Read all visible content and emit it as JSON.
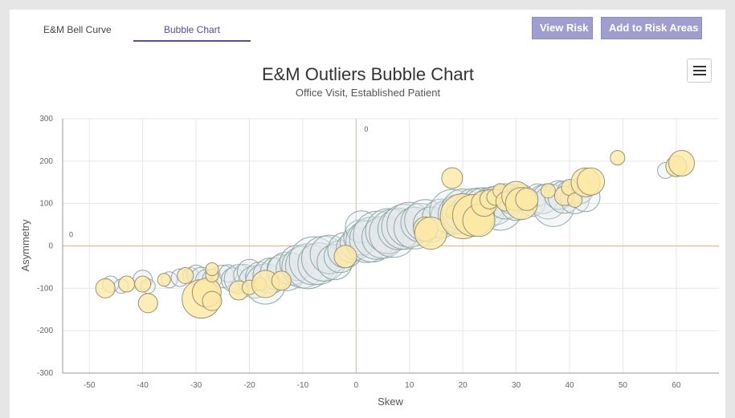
{
  "tabs": [
    {
      "label": "E&M Bell Curve"
    },
    {
      "label": "Bubble Chart"
    }
  ],
  "buttons": {
    "view_risk": "View Risk",
    "add_to_risk_areas": "Add to Risk Areas"
  },
  "menu_icon": "hamburger-menu-icon",
  "colors": {
    "accent": "#5b4a9e",
    "button": "#a09dd0",
    "zero_line": "#f2b49b",
    "bubble_outlier": "#fde9a6",
    "bubble_normal": "#e3e9ea"
  },
  "chart_data": {
    "type": "scatter",
    "title": "E&M Outliers Bubble Chart",
    "subtitle": "Office Visit, Established Patient",
    "xlabel": "Skew",
    "ylabel": "Asymmetry",
    "xlim": [
      -55,
      68
    ],
    "ylim": [
      -300,
      300
    ],
    "x_ticks": [
      -50,
      -40,
      -30,
      -20,
      -10,
      0,
      10,
      20,
      30,
      40,
      50,
      60
    ],
    "y_ticks": [
      -300,
      -200,
      -100,
      0,
      100,
      200,
      300
    ],
    "zero_line_labels": {
      "x_axis": "0",
      "y_axis": "0"
    },
    "grid": true,
    "series": [
      {
        "values": [
          [
            -46,
            -90,
            10
          ],
          [
            -44,
            -95,
            9
          ],
          [
            -40,
            -80,
            12
          ],
          [
            -39,
            -95,
            9
          ],
          [
            -35,
            -80,
            10
          ],
          [
            -33,
            -75,
            11
          ],
          [
            -31,
            -70,
            10
          ],
          [
            -30,
            -68,
            12
          ],
          [
            -29,
            -75,
            13
          ],
          [
            -28,
            -82,
            14
          ],
          [
            -27,
            -78,
            12
          ],
          [
            -25,
            -72,
            14
          ],
          [
            -24,
            -65,
            11
          ],
          [
            -23,
            -80,
            15
          ],
          [
            -22,
            -78,
            18
          ],
          [
            -21,
            -68,
            13
          ],
          [
            -20,
            -60,
            15
          ],
          [
            -19,
            -85,
            20
          ],
          [
            -18,
            -72,
            18
          ],
          [
            -17,
            -90,
            25
          ],
          [
            -16,
            -70,
            22
          ],
          [
            -15,
            -65,
            20
          ],
          [
            -14,
            -55,
            18
          ],
          [
            -13,
            -60,
            24
          ],
          [
            -12,
            -55,
            20
          ],
          [
            -11,
            -40,
            22
          ],
          [
            -10,
            -50,
            26
          ],
          [
            -9,
            -48,
            28
          ],
          [
            -8,
            -35,
            30
          ],
          [
            -7,
            -42,
            26
          ],
          [
            -6,
            -30,
            28
          ],
          [
            -5,
            -20,
            24
          ],
          [
            -4,
            -38,
            22
          ],
          [
            -3,
            -25,
            20
          ],
          [
            -2,
            -10,
            22
          ],
          [
            -1,
            -5,
            18
          ],
          [
            0,
            5,
            20
          ],
          [
            1,
            20,
            22
          ],
          [
            1,
            45,
            20
          ],
          [
            2,
            10,
            26
          ],
          [
            3,
            15,
            28
          ],
          [
            4,
            25,
            30
          ],
          [
            5,
            20,
            26
          ],
          [
            6,
            35,
            28
          ],
          [
            7,
            30,
            30
          ],
          [
            8,
            40,
            26
          ],
          [
            9,
            45,
            28
          ],
          [
            10,
            50,
            28
          ],
          [
            11,
            42,
            26
          ],
          [
            12,
            55,
            24
          ],
          [
            13,
            60,
            26
          ],
          [
            14,
            50,
            22
          ],
          [
            16,
            65,
            24
          ],
          [
            17,
            70,
            20
          ],
          [
            18,
            80,
            28
          ],
          [
            19,
            75,
            24
          ],
          [
            20,
            85,
            26
          ],
          [
            21,
            80,
            22
          ],
          [
            22,
            90,
            24
          ],
          [
            23,
            95,
            22
          ],
          [
            24,
            88,
            26
          ],
          [
            25,
            100,
            20
          ],
          [
            26,
            95,
            24
          ],
          [
            27,
            90,
            28
          ],
          [
            28,
            105,
            22
          ],
          [
            29,
            110,
            18
          ],
          [
            30,
            98,
            20
          ],
          [
            31,
            115,
            16
          ],
          [
            33,
            100,
            16
          ],
          [
            34,
            120,
            14
          ],
          [
            35,
            110,
            18
          ],
          [
            36,
            105,
            22
          ],
          [
            37,
            95,
            26
          ],
          [
            38,
            120,
            18
          ],
          [
            39,
            115,
            20
          ],
          [
            40,
            125,
            16
          ],
          [
            41,
            110,
            18
          ],
          [
            42,
            130,
            16
          ],
          [
            43,
            115,
            18
          ],
          [
            58,
            178,
            10
          ]
        ]
      },
      {
        "values": [
          [
            -47,
            -100,
            12
          ],
          [
            -43,
            -90,
            10
          ],
          [
            -40,
            -90,
            10
          ],
          [
            -39,
            -135,
            12
          ],
          [
            -36,
            -80,
            8
          ],
          [
            -32,
            -70,
            10
          ],
          [
            -29,
            -125,
            24
          ],
          [
            -28,
            -110,
            18
          ],
          [
            -27,
            -130,
            12
          ],
          [
            -27,
            -70,
            8
          ],
          [
            -27,
            -55,
            8
          ],
          [
            -22,
            -105,
            12
          ],
          [
            -20,
            -98,
            9
          ],
          [
            -18,
            -90,
            8
          ],
          [
            -17,
            -90,
            17
          ],
          [
            -14,
            -82,
            12
          ],
          [
            -2,
            -25,
            14
          ],
          [
            13,
            40,
            15
          ],
          [
            14,
            30,
            20
          ],
          [
            18,
            160,
            13
          ],
          [
            18,
            80,
            8
          ],
          [
            20,
            70,
            28
          ],
          [
            22,
            72,
            26
          ],
          [
            23,
            60,
            20
          ],
          [
            24,
            100,
            16
          ],
          [
            25,
            110,
            12
          ],
          [
            26,
            115,
            10
          ],
          [
            27,
            130,
            9
          ],
          [
            28,
            105,
            12
          ],
          [
            30,
            118,
            18
          ],
          [
            31,
            100,
            20
          ],
          [
            32,
            110,
            14
          ],
          [
            36,
            130,
            9
          ],
          [
            39,
            118,
            12
          ],
          [
            40,
            138,
            10
          ],
          [
            41,
            108,
            9
          ],
          [
            43,
            150,
            18
          ],
          [
            44,
            152,
            17
          ],
          [
            49,
            208,
            9
          ],
          [
            60,
            188,
            13
          ],
          [
            61,
            195,
            16
          ]
        ]
      }
    ]
  }
}
